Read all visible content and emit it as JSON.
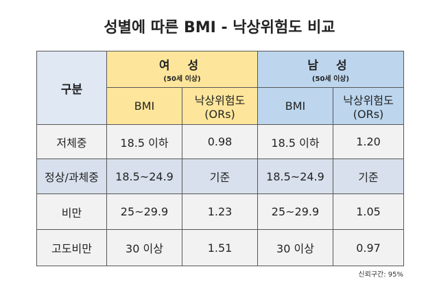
{
  "title": "성별에 따른 BMI - 낙상위험도 비교",
  "header": {
    "category": "구분",
    "female": {
      "label": "여 성",
      "sub": "(50세 이상)"
    },
    "male": {
      "label": "남 성",
      "sub": "(50세 이상)"
    },
    "bmi": "BMI",
    "risk_line1": "낙상위험도",
    "risk_line2": "(ORs)"
  },
  "rows": [
    {
      "category": "저체중",
      "f_bmi": "18.5 이하",
      "f_or": "0.98",
      "m_bmi": "18.5 이하",
      "m_or": "1.20"
    },
    {
      "category": "정상/과체중",
      "f_bmi": "18.5~24.9",
      "f_or": "기준",
      "m_bmi": "18.5~24.9",
      "m_or": "기준"
    },
    {
      "category": "비만",
      "f_bmi": "25~29.9",
      "f_or": "1.23",
      "m_bmi": "25~29.9",
      "m_or": "1.05"
    },
    {
      "category": "고도비만",
      "f_bmi": "30 이상",
      "f_or": "1.51",
      "m_bmi": "30 이상",
      "m_or": "0.97"
    }
  ],
  "note": "신뢰구간: 95%"
}
